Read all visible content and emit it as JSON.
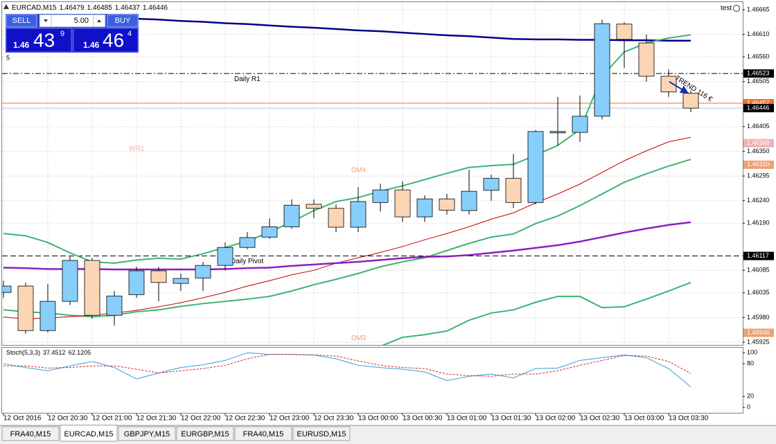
{
  "header": {
    "symbol": "EURCAD,M15",
    "account": "test"
  },
  "trade_panel": {
    "sell": "SELL",
    "buy": "BUY",
    "lot": "5.00",
    "sell_price": {
      "big": "1.46",
      "pips": "43",
      "point": "9"
    },
    "buy_price": {
      "big": "1.46",
      "pips": "46",
      "point": "4"
    },
    "one_click": "5"
  },
  "chart_data": [
    {
      "type": "candlestick",
      "annotation": "TREND 116 €",
      "categories": [
        "12 Oct 2016",
        null,
        "12 Oct 20:30",
        null,
        "12 Oct 21:00",
        null,
        "12 Oct 21:30",
        null,
        "12 Oct 22:00",
        null,
        "12 Oct 22:30",
        null,
        "12 Oct 23:00",
        null,
        "12 Oct 23:30",
        null,
        "13 Oct 00:00",
        null,
        "13 Oct 00:30",
        null,
        "13 Oct 01:00",
        null,
        "13 Oct 01:30",
        null,
        "13 Oct 02:00",
        null,
        "13 Oct 02:30",
        null,
        "13 Oct 03:00",
        null,
        "13 Oct 03:30",
        null
      ],
      "open": [
        1.46036,
        1.4605,
        1.45951,
        1.46016,
        1.46107,
        1.45985,
        1.46031,
        1.46084,
        1.46056,
        1.46068,
        1.46096,
        1.46136,
        1.46159,
        1.46182,
        1.46232,
        1.46223,
        1.46181,
        1.46236,
        1.46264,
        1.46204,
        1.46244,
        1.46218,
        1.46263,
        1.4629,
        1.46236,
        1.46391,
        1.46392,
        1.46428,
        1.46633,
        1.46591,
        1.46517,
        1.46479
      ],
      "high": [
        1.46062,
        1.46058,
        1.46055,
        1.46116,
        1.46113,
        1.46039,
        1.46093,
        1.46093,
        1.46078,
        1.46104,
        1.46147,
        1.4617,
        1.46201,
        1.46243,
        1.46243,
        1.46232,
        1.4627,
        1.46278,
        1.46283,
        1.46252,
        1.46255,
        1.46309,
        1.46298,
        1.46344,
        1.46397,
        1.46471,
        1.46474,
        1.46643,
        1.46637,
        1.4661,
        1.46532,
        1.46485
      ],
      "low": [
        1.46024,
        1.45944,
        1.45947,
        1.46008,
        1.45977,
        1.45962,
        1.46024,
        1.46016,
        1.46039,
        1.46039,
        1.46085,
        1.46132,
        1.46155,
        1.46178,
        1.46201,
        1.4617,
        1.4617,
        1.46216,
        1.46193,
        1.46193,
        1.46209,
        1.46209,
        1.4624,
        1.46224,
        1.46232,
        1.46363,
        1.46371,
        1.46421,
        1.46535,
        1.46505,
        1.46471,
        1.46437
      ],
      "close": [
        1.4605,
        1.45951,
        1.46016,
        1.46107,
        1.45985,
        1.46028,
        1.46084,
        1.46058,
        1.46067,
        1.46096,
        1.46136,
        1.46158,
        1.46182,
        1.4623,
        1.46223,
        1.46181,
        1.46238,
        1.46264,
        1.46204,
        1.46244,
        1.46219,
        1.46261,
        1.4629,
        1.46236,
        1.46394,
        1.46394,
        1.46428,
        1.46634,
        1.46599,
        1.46517,
        1.46482,
        1.46446
      ],
      "up_color": "#87cefa",
      "down_color": "#fcd5b4",
      "series": [
        {
          "color": "#00008b",
          "width": 2.5,
          "values": [
            null,
            null,
            null,
            null,
            null,
            null,
            1.46645,
            1.46643,
            1.4664,
            1.46638,
            1.46635,
            1.46633,
            1.4663,
            1.46627,
            1.46625,
            1.46622,
            1.46619,
            1.46617,
            1.46614,
            1.46611,
            1.46608,
            1.46606,
            1.46603,
            1.466,
            1.46599,
            1.46599,
            1.46598,
            1.46598,
            1.46597,
            1.46597,
            1.46596,
            1.46596
          ]
        },
        {
          "color": "#3cb371",
          "width": 2,
          "values": [
            1.46167,
            1.46162,
            1.46147,
            1.46124,
            1.46104,
            1.46101,
            1.46108,
            1.46112,
            1.4611,
            1.46122,
            1.46136,
            1.4615,
            1.4617,
            1.46193,
            1.46218,
            1.46238,
            1.46247,
            1.46261,
            1.46273,
            1.46287,
            1.46301,
            1.46314,
            1.46318,
            1.46321,
            1.46341,
            1.46363,
            1.46398,
            1.46517,
            1.46571,
            1.46591,
            1.46602,
            1.46609
          ]
        },
        {
          "color": "#3cb371",
          "width": 2,
          "values": [
            1.45997,
            1.45993,
            1.4599,
            1.45985,
            1.45982,
            1.45985,
            1.45993,
            1.45997,
            1.46005,
            1.46011,
            1.46016,
            1.46021,
            1.46027,
            1.46039,
            1.46053,
            1.46065,
            1.46078,
            1.46093,
            1.46104,
            1.46113,
            1.46129,
            1.46145,
            1.46159,
            1.46166,
            1.46189,
            1.46206,
            1.46229,
            1.46255,
            1.46281,
            1.463,
            1.46317,
            1.46332
          ]
        },
        {
          "color": "#3cb371",
          "width": 2,
          "values": [
            null,
            null,
            null,
            null,
            null,
            null,
            null,
            null,
            null,
            null,
            null,
            null,
            null,
            null,
            null,
            null,
            null,
            1.45916,
            1.45936,
            1.45942,
            1.4595,
            1.45974,
            1.4599,
            1.45997,
            1.46014,
            1.46027,
            1.46027,
            1.46002,
            1.46004,
            1.46021,
            1.46039,
            1.46058
          ]
        },
        {
          "color": "#c00000",
          "width": 1,
          "values": [
            1.45981,
            1.45977,
            1.45979,
            1.45982,
            1.45985,
            1.4599,
            1.45996,
            1.46004,
            1.46013,
            1.46024,
            1.46036,
            1.4605,
            1.46062,
            1.46075,
            1.46085,
            1.46101,
            1.46113,
            1.46125,
            1.46138,
            1.46153,
            1.46167,
            1.46182,
            1.46199,
            1.46213,
            1.46235,
            1.46255,
            1.46277,
            1.46303,
            1.46329,
            1.46351,
            1.46371,
            1.46381
          ]
        },
        {
          "color": "#8b1fbf",
          "width": 2.5,
          "values": [
            1.46091,
            1.4609,
            1.46088,
            1.46088,
            1.46088,
            1.46087,
            1.46087,
            1.46087,
            1.46087,
            1.46087,
            1.46088,
            1.4609,
            1.46091,
            1.46095,
            1.46098,
            1.46101,
            1.46104,
            1.46108,
            1.46112,
            1.46115,
            1.46116,
            1.46119,
            1.46124,
            1.46129,
            1.46135,
            1.46141,
            1.46149,
            1.46159,
            1.46169,
            1.46178,
            1.46186,
            1.46192
          ]
        }
      ],
      "levels": [
        {
          "name": "Daily R1",
          "value": 1.46523,
          "color": "#000000",
          "style": "dashdot",
          "label_bg": "#000000"
        },
        {
          "value": 1.46457,
          "color": "#f07030",
          "style": "solid",
          "label_bg": "#f07030"
        },
        {
          "value": 1.46446,
          "color": "#b0c4de",
          "style": "solid",
          "label_bg": "#000000"
        },
        {
          "name": "WR2",
          "value": 1.46368,
          "color": "#f4b0b0",
          "style": "none",
          "label_bg": "#f4b0b0"
        },
        {
          "name": "DM4",
          "value": 1.4632,
          "value_label": "1.46320",
          "color": "#f0a070",
          "style": "none",
          "label_bg": "#f0a070"
        },
        {
          "name": "Daily Pivot",
          "value": 1.46117,
          "color": "#000000",
          "style": "dashed",
          "label_bg": "#000000"
        },
        {
          "name": "DM3",
          "value": 1.45946,
          "color": "#f0a070",
          "style": "none",
          "label_bg": "#f0a070"
        }
      ],
      "ylim": [
        1.45919,
        1.46682
      ],
      "yticks": [
        1.46665,
        {
          "value": 1.4661,
          "label": "1.46610"
        },
        {
          "value": 1.4656,
          "label": "1.46560"
        },
        1.46505,
        1.46405,
        {
          "value": 1.4635,
          "label": "1.46350"
        },
        1.46295,
        {
          "value": 1.4624,
          "label": "1.46240"
        },
        {
          "value": 1.4619,
          "label": "1.46190"
        },
        1.46085,
        1.46035,
        {
          "value": 1.4598,
          "label": "1.45980"
        },
        1.45925
      ],
      "grid": true
    },
    {
      "type": "line",
      "title": "Stoch(5,3,3)",
      "series": [
        {
          "color": "#2f9fd8",
          "width": 1,
          "values": [
            80,
            73,
            67,
            76,
            84,
            73,
            52,
            63,
            73,
            78,
            86,
            100,
            97,
            97,
            96,
            89,
            77,
            73,
            70,
            65,
            49,
            57,
            61,
            54,
            71,
            72,
            86,
            91,
            96,
            91,
            71,
            37.4512
          ]
        },
        {
          "color": "#d02020",
          "width": 1,
          "dash": true,
          "values": [
            76,
            76,
            72,
            73,
            76,
            76,
            70,
            63,
            67,
            71,
            77,
            89,
            97,
            97,
            96,
            94,
            85,
            77,
            73,
            71,
            61,
            58,
            57,
            61,
            61,
            67,
            77,
            86,
            95,
            94,
            84,
            62.1205
          ]
        }
      ],
      "ylim": [
        -10,
        108
      ],
      "yticks": [
        100,
        80,
        20,
        0
      ],
      "grid": false
    }
  ],
  "tabs": [
    "FRA40,M15",
    "EURCAD,M15",
    "GBPJPY,M15",
    "EURGBP,M15",
    "FRA40,M15",
    "EURUSD,M15"
  ],
  "active_tab": 1
}
